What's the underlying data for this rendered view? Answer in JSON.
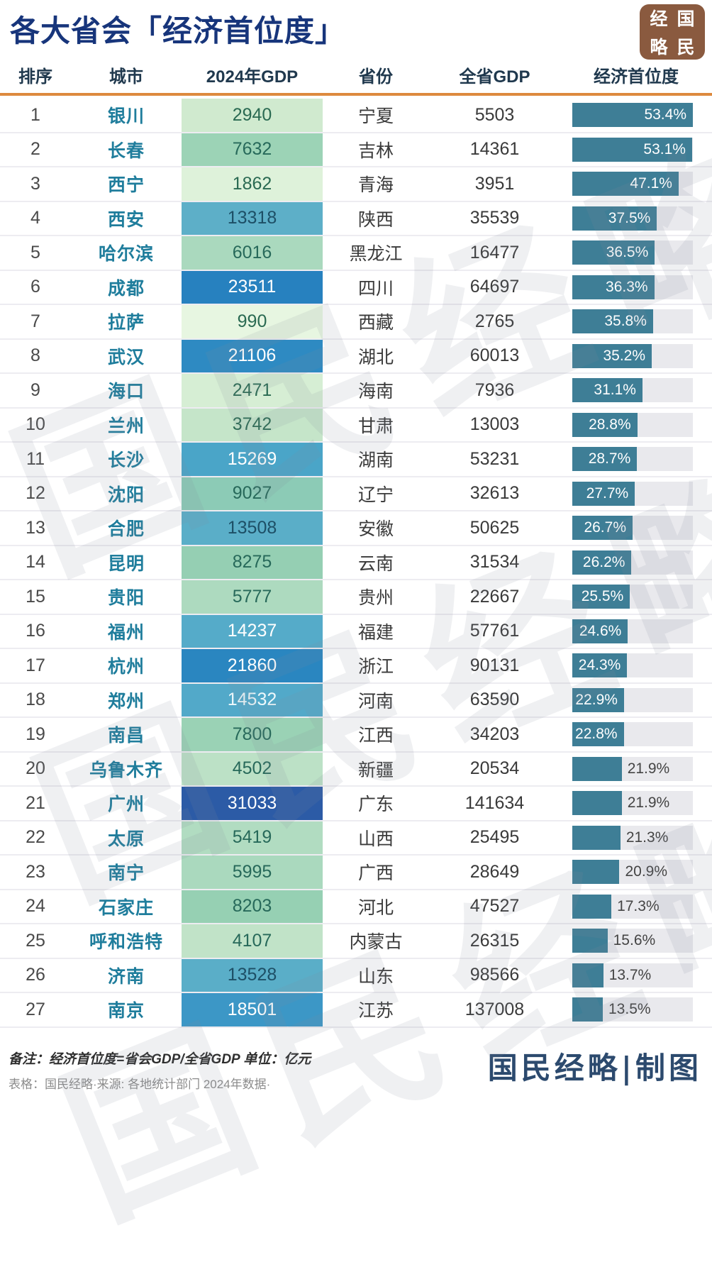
{
  "title": "各大省会「经济首位度」",
  "logo": {
    "c1": "经",
    "c2": "国",
    "c3": "略",
    "c4": "民"
  },
  "watermark": {
    "text": "国民经略"
  },
  "colors": {
    "title": "#17357b",
    "header_text": "#20394e",
    "divider": "#dd8a3e",
    "city": "#1f7d9c",
    "rank_text": "#4a4a4a",
    "value_text": "#3a3a3a",
    "logo_bg": "#8a5a3f",
    "credit": "#2c4a6e",
    "note_text": "#2e2e2e",
    "source_text": "#8b8b8b",
    "watermark": "rgba(128,140,153,0.13)"
  },
  "footer": {
    "note": "备注：经济首位度=省会GDP/全省GDP 单位：亿元",
    "source": "表格：国民经略·来源: 各地统计部门 2024年数据·",
    "credit": "国民经略|制图"
  },
  "chart_data": {
    "type": "table",
    "title": "各大省会「经济首位度」",
    "columns": [
      "排序",
      "城市",
      "2024年GDP",
      "省份",
      "全省GDP",
      "经济首位度"
    ],
    "unit": "亿元",
    "bar": {
      "column": "经济首位度",
      "max_pct": 53.4,
      "fill": "#3e7e96",
      "track": "#e9e9ed",
      "inside_label_min_pct": 22.5
    },
    "rows": [
      {
        "rank": "1",
        "city": "银川",
        "gdp": "2940",
        "gdp_bg": "#d0eacf",
        "gdp_fg": "#2a6a52",
        "province": "宁夏",
        "province_gdp": "5503",
        "primacy": "53.4%",
        "pct": 53.4
      },
      {
        "rank": "2",
        "city": "长春",
        "gdp": "7632",
        "gdp_bg": "#9cd3b6",
        "gdp_fg": "#27695a",
        "province": "吉林",
        "province_gdp": "14361",
        "primacy": "53.1%",
        "pct": 53.1
      },
      {
        "rank": "3",
        "city": "西宁",
        "gdp": "1862",
        "gdp_bg": "#def2da",
        "gdp_fg": "#2a6a52",
        "province": "青海",
        "province_gdp": "3951",
        "primacy": "47.1%",
        "pct": 47.1
      },
      {
        "rank": "4",
        "city": "西安",
        "gdp": "13318",
        "gdp_bg": "#5dafc8",
        "gdp_fg": "#1d4f66",
        "province": "陕西",
        "province_gdp": "35539",
        "primacy": "37.5%",
        "pct": 37.5
      },
      {
        "rank": "5",
        "city": "哈尔滨",
        "gdp": "6016",
        "gdp_bg": "#aad9be",
        "gdp_fg": "#27695a",
        "province": "黑龙江",
        "province_gdp": "16477",
        "primacy": "36.5%",
        "pct": 36.5
      },
      {
        "rank": "6",
        "city": "成都",
        "gdp": "23511",
        "gdp_bg": "#2781bf",
        "gdp_fg": "#ffffff",
        "province": "四川",
        "province_gdp": "64697",
        "primacy": "36.3%",
        "pct": 36.3
      },
      {
        "rank": "7",
        "city": "拉萨",
        "gdp": "990",
        "gdp_bg": "#e7f6e1",
        "gdp_fg": "#2a6a52",
        "province": "西藏",
        "province_gdp": "2765",
        "primacy": "35.8%",
        "pct": 35.8
      },
      {
        "rank": "8",
        "city": "武汉",
        "gdp": "21106",
        "gdp_bg": "#2e8ac2",
        "gdp_fg": "#ffffff",
        "province": "湖北",
        "province_gdp": "60013",
        "primacy": "35.2%",
        "pct": 35.2
      },
      {
        "rank": "9",
        "city": "海口",
        "gdp": "2471",
        "gdp_bg": "#d6eed4",
        "gdp_fg": "#2a6a52",
        "province": "海南",
        "province_gdp": "7936",
        "primacy": "31.1%",
        "pct": 31.1
      },
      {
        "rank": "10",
        "city": "兰州",
        "gdp": "3742",
        "gdp_bg": "#c5e5c9",
        "gdp_fg": "#2a6a52",
        "province": "甘肃",
        "province_gdp": "13003",
        "primacy": "28.8%",
        "pct": 28.8
      },
      {
        "rank": "11",
        "city": "长沙",
        "gdp": "15269",
        "gdp_bg": "#4aa5c8",
        "gdp_fg": "#ffffff",
        "province": "湖南",
        "province_gdp": "53231",
        "primacy": "28.7%",
        "pct": 28.7
      },
      {
        "rank": "12",
        "city": "沈阳",
        "gdp": "9027",
        "gdp_bg": "#8ccbb6",
        "gdp_fg": "#27695a",
        "province": "辽宁",
        "province_gdp": "32613",
        "primacy": "27.7%",
        "pct": 27.7
      },
      {
        "rank": "13",
        "city": "合肥",
        "gdp": "13508",
        "gdp_bg": "#5aaec8",
        "gdp_fg": "#1d4f66",
        "province": "安徽",
        "province_gdp": "50625",
        "primacy": "26.7%",
        "pct": 26.7
      },
      {
        "rank": "14",
        "city": "昆明",
        "gdp": "8275",
        "gdp_bg": "#95cfb3",
        "gdp_fg": "#27695a",
        "province": "云南",
        "province_gdp": "31534",
        "primacy": "26.2%",
        "pct": 26.2
      },
      {
        "rank": "15",
        "city": "贵阳",
        "gdp": "5777",
        "gdp_bg": "#addabf",
        "gdp_fg": "#27695a",
        "province": "贵州",
        "province_gdp": "22667",
        "primacy": "25.5%",
        "pct": 25.5
      },
      {
        "rank": "16",
        "city": "福州",
        "gdp": "14237",
        "gdp_bg": "#55abc9",
        "gdp_fg": "#ffffff",
        "province": "福建",
        "province_gdp": "57761",
        "primacy": "24.6%",
        "pct": 24.6
      },
      {
        "rank": "17",
        "city": "杭州",
        "gdp": "21860",
        "gdp_bg": "#2a86c0",
        "gdp_fg": "#ffffff",
        "province": "浙江",
        "province_gdp": "90131",
        "primacy": "24.3%",
        "pct": 24.3
      },
      {
        "rank": "18",
        "city": "郑州",
        "gdp": "14532",
        "gdp_bg": "#52a9c9",
        "gdp_fg": "#eef8fb",
        "province": "河南",
        "province_gdp": "63590",
        "primacy": "22.9%",
        "pct": 22.9
      },
      {
        "rank": "19",
        "city": "南昌",
        "gdp": "7800",
        "gdp_bg": "#9ad2b5",
        "gdp_fg": "#27695a",
        "province": "江西",
        "province_gdp": "34203",
        "primacy": "22.8%",
        "pct": 22.8
      },
      {
        "rank": "20",
        "city": "乌鲁木齐",
        "gdp": "4502",
        "gdp_bg": "#bce1c6",
        "gdp_fg": "#27695a",
        "province": "新疆",
        "province_gdp": "20534",
        "primacy": "21.9%",
        "pct": 21.9
      },
      {
        "rank": "21",
        "city": "广州",
        "gdp": "31033",
        "gdp_bg": "#2c5ba6",
        "gdp_fg": "#ffffff",
        "province": "广东",
        "province_gdp": "141634",
        "primacy": "21.9%",
        "pct": 21.9
      },
      {
        "rank": "22",
        "city": "太原",
        "gdp": "5419",
        "gdp_bg": "#b1dcc1",
        "gdp_fg": "#27695a",
        "province": "山西",
        "province_gdp": "25495",
        "primacy": "21.3%",
        "pct": 21.3
      },
      {
        "rank": "23",
        "city": "南宁",
        "gdp": "5995",
        "gdp_bg": "#aad9be",
        "gdp_fg": "#27695a",
        "province": "广西",
        "province_gdp": "28649",
        "primacy": "20.9%",
        "pct": 20.9
      },
      {
        "rank": "24",
        "city": "石家庄",
        "gdp": "8203",
        "gdp_bg": "#96d0b3",
        "gdp_fg": "#27695a",
        "province": "河北",
        "province_gdp": "47527",
        "primacy": "17.3%",
        "pct": 17.3
      },
      {
        "rank": "25",
        "city": "呼和浩特",
        "gdp": "4107",
        "gdp_bg": "#c1e3c8",
        "gdp_fg": "#27695a",
        "province": "内蒙古",
        "province_gdp": "26315",
        "primacy": "15.6%",
        "pct": 15.6
      },
      {
        "rank": "26",
        "city": "济南",
        "gdp": "13528",
        "gdp_bg": "#5aaec8",
        "gdp_fg": "#1d4f66",
        "province": "山东",
        "province_gdp": "98566",
        "primacy": "13.7%",
        "pct": 13.7
      },
      {
        "rank": "27",
        "city": "南京",
        "gdp": "18501",
        "gdp_bg": "#3c97c6",
        "gdp_fg": "#ffffff",
        "province": "江苏",
        "province_gdp": "137008",
        "primacy": "13.5%",
        "pct": 13.5
      }
    ]
  }
}
